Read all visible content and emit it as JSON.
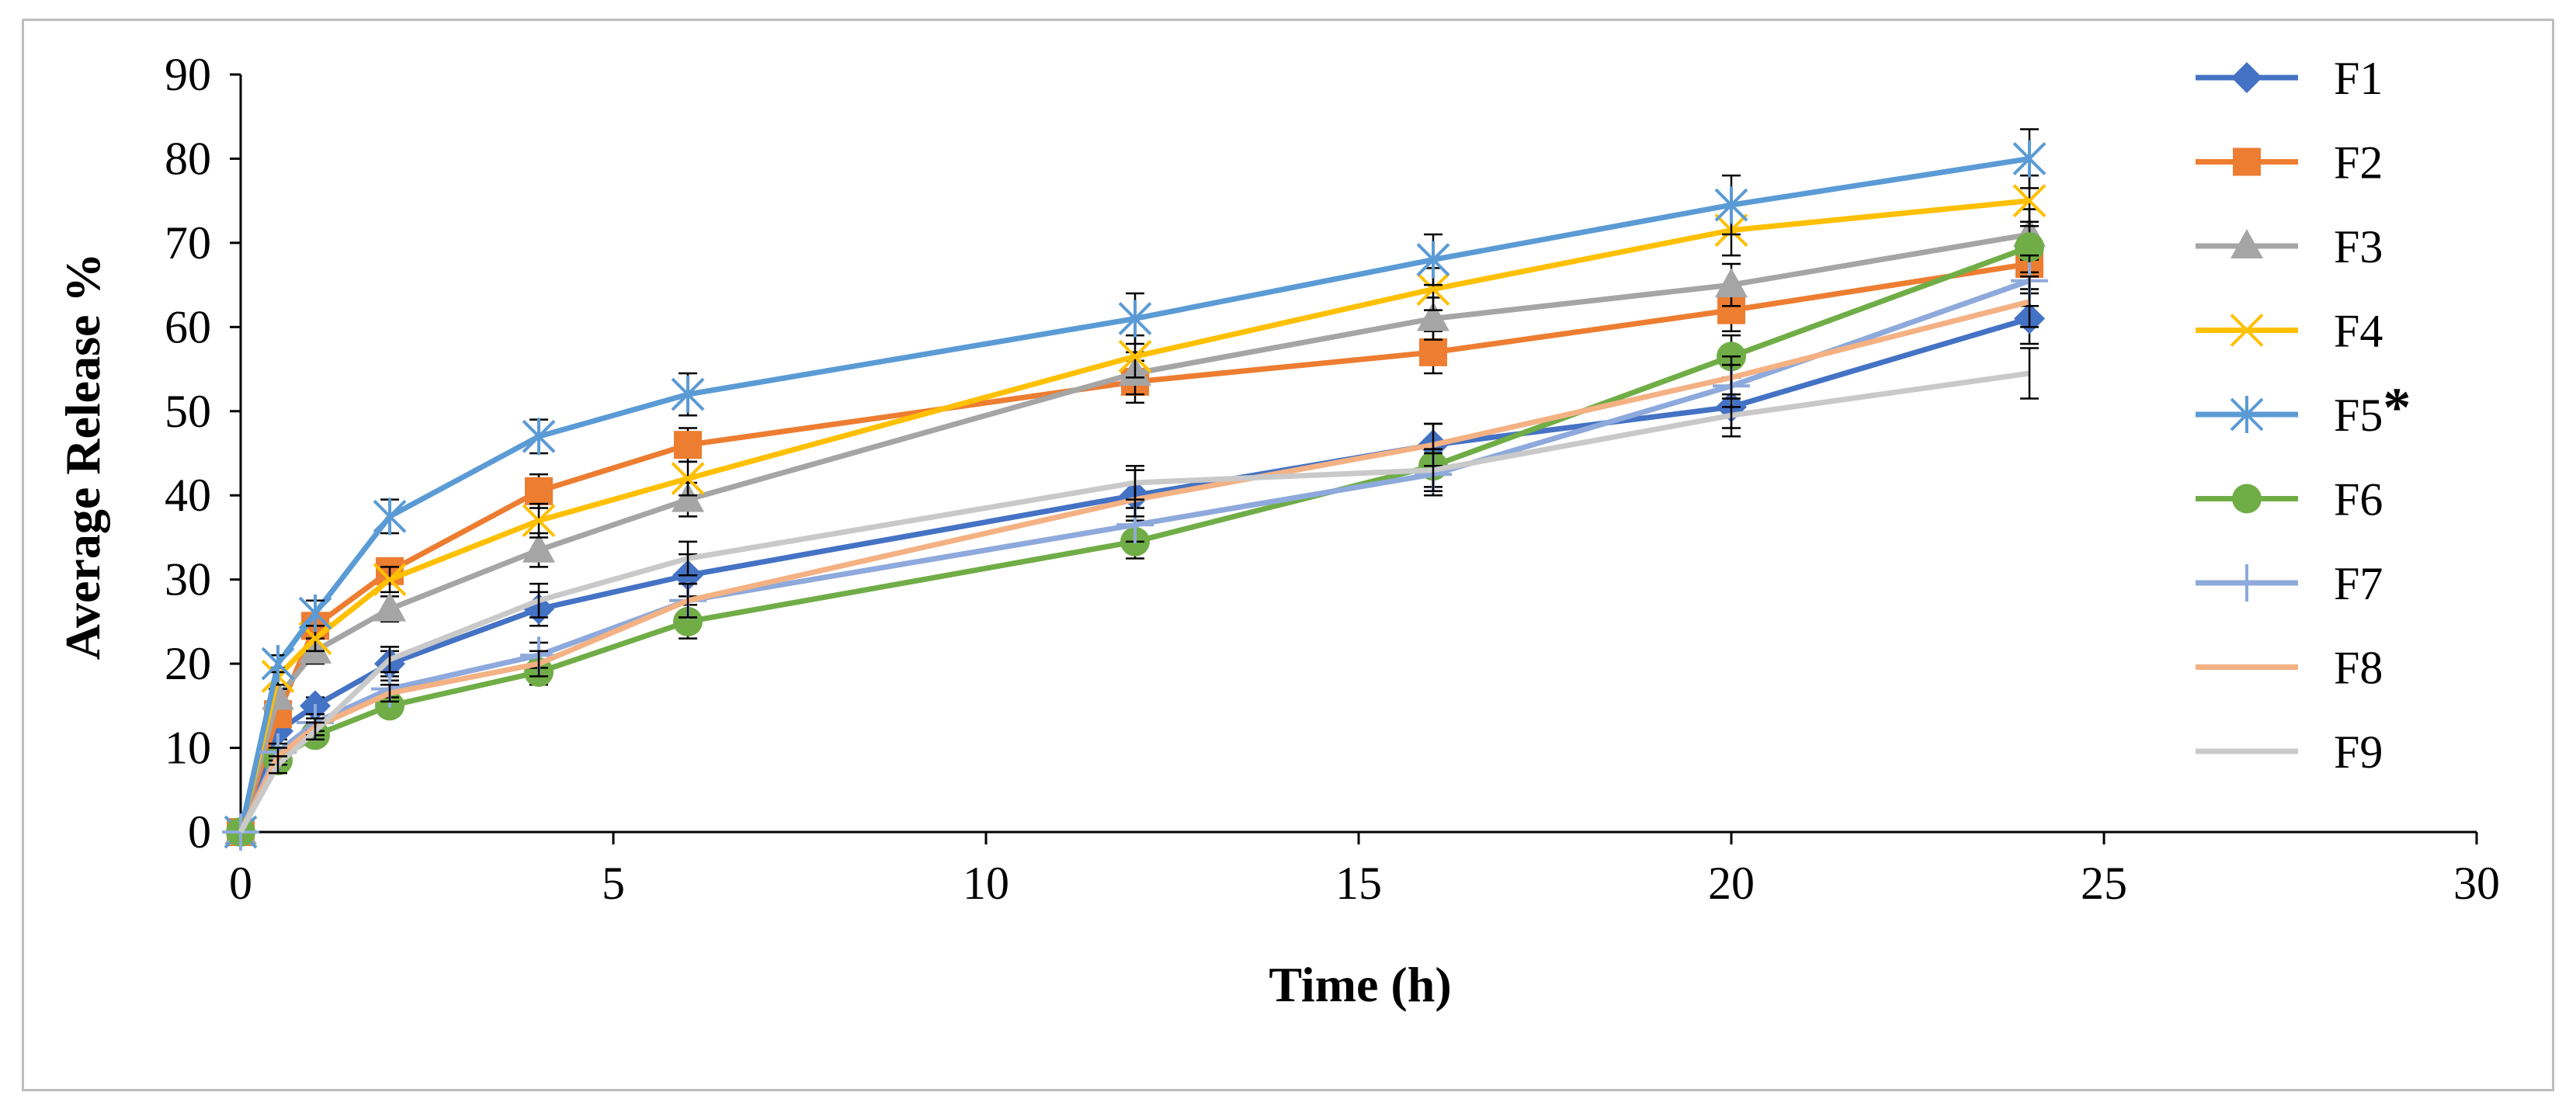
{
  "chart_data": {
    "type": "line",
    "title": "",
    "xlabel": "Time (h)",
    "ylabel": "Average Release %",
    "xlim": [
      0,
      30
    ],
    "ylim": [
      0,
      90
    ],
    "xticks": [
      0,
      5,
      10,
      15,
      20,
      25,
      30
    ],
    "yticks": [
      0,
      10,
      20,
      30,
      40,
      50,
      60,
      70,
      80,
      90
    ],
    "grid": false,
    "legend_position": "right",
    "x": [
      0,
      0.5,
      1,
      2,
      4,
      6,
      12,
      16,
      20,
      24
    ],
    "series": [
      {
        "name": "F1",
        "color": "#4472C4",
        "marker": "diamond",
        "values": [
          0,
          12,
          15,
          20,
          26.5,
          30.5,
          40,
          46,
          50.5,
          61
        ],
        "errors": [
          0,
          1,
          1,
          1.5,
          2,
          2.5,
          3,
          2.5,
          2.5,
          3
        ]
      },
      {
        "name": "F2",
        "color": "#ED7D31",
        "marker": "square",
        "values": [
          0,
          14,
          24.5,
          31,
          40.5,
          46,
          53.5,
          57,
          62,
          67.5
        ],
        "errors": [
          0,
          1,
          1.5,
          1.5,
          2,
          2,
          2.5,
          2.5,
          2.5,
          3
        ]
      },
      {
        "name": "F3",
        "color": "#A5A5A5",
        "marker": "triangle",
        "values": [
          0,
          16,
          21.5,
          26.5,
          33.5,
          39.5,
          54.5,
          61,
          65,
          71
        ],
        "errors": [
          0,
          1,
          1.5,
          1.5,
          2,
          2,
          2.5,
          2.5,
          2.5,
          3
        ]
      },
      {
        "name": "F4",
        "color": "#FFC000",
        "marker": "x",
        "values": [
          0,
          18.5,
          23,
          30,
          37,
          42,
          56.5,
          64.5,
          71.5,
          75
        ],
        "errors": [
          0,
          1,
          1.5,
          1.5,
          2,
          2,
          2.5,
          2.5,
          3,
          3
        ]
      },
      {
        "name": "F5",
        "legend_suffix": "*",
        "color": "#5B9BD5",
        "marker": "asterisk",
        "values": [
          0,
          20,
          26,
          37.5,
          47,
          52,
          61,
          68,
          74.5,
          80
        ],
        "errors": [
          0,
          1,
          1.5,
          2,
          2,
          2.5,
          3,
          3,
          3.5,
          3.5
        ]
      },
      {
        "name": "F6",
        "color": "#70AD47",
        "marker": "circle",
        "values": [
          0,
          8.5,
          11.5,
          15,
          19,
          25,
          34.5,
          43.5,
          56.5,
          69.5
        ],
        "errors": [
          0,
          1,
          1,
          1,
          1.5,
          2,
          2,
          2.5,
          2.5,
          3
        ]
      },
      {
        "name": "F7",
        "color": "#8EA9DB",
        "marker": "plus",
        "values": [
          0,
          9.5,
          13,
          17,
          21,
          27.5,
          36.5,
          42.5,
          53,
          65.5
        ],
        "errors": [
          0,
          1,
          1,
          1,
          1.5,
          2,
          2,
          2.5,
          2.5,
          3
        ]
      },
      {
        "name": "F8",
        "color": "#F4B183",
        "marker": "none",
        "values": [
          0,
          9,
          12.5,
          16.5,
          20,
          27.5,
          39.5,
          46,
          54,
          63
        ],
        "errors": [
          0,
          1,
          1,
          1,
          1.5,
          2,
          2,
          2.5,
          2.5,
          3
        ]
      },
      {
        "name": "F9",
        "color": "#C9C9C9",
        "marker": "none",
        "values": [
          0,
          8,
          12,
          20.5,
          27.5,
          32.5,
          41.5,
          43,
          49.5,
          54.5
        ],
        "errors": [
          0,
          1,
          1,
          1.5,
          2,
          2,
          2,
          2.5,
          2.5,
          3
        ]
      }
    ]
  }
}
